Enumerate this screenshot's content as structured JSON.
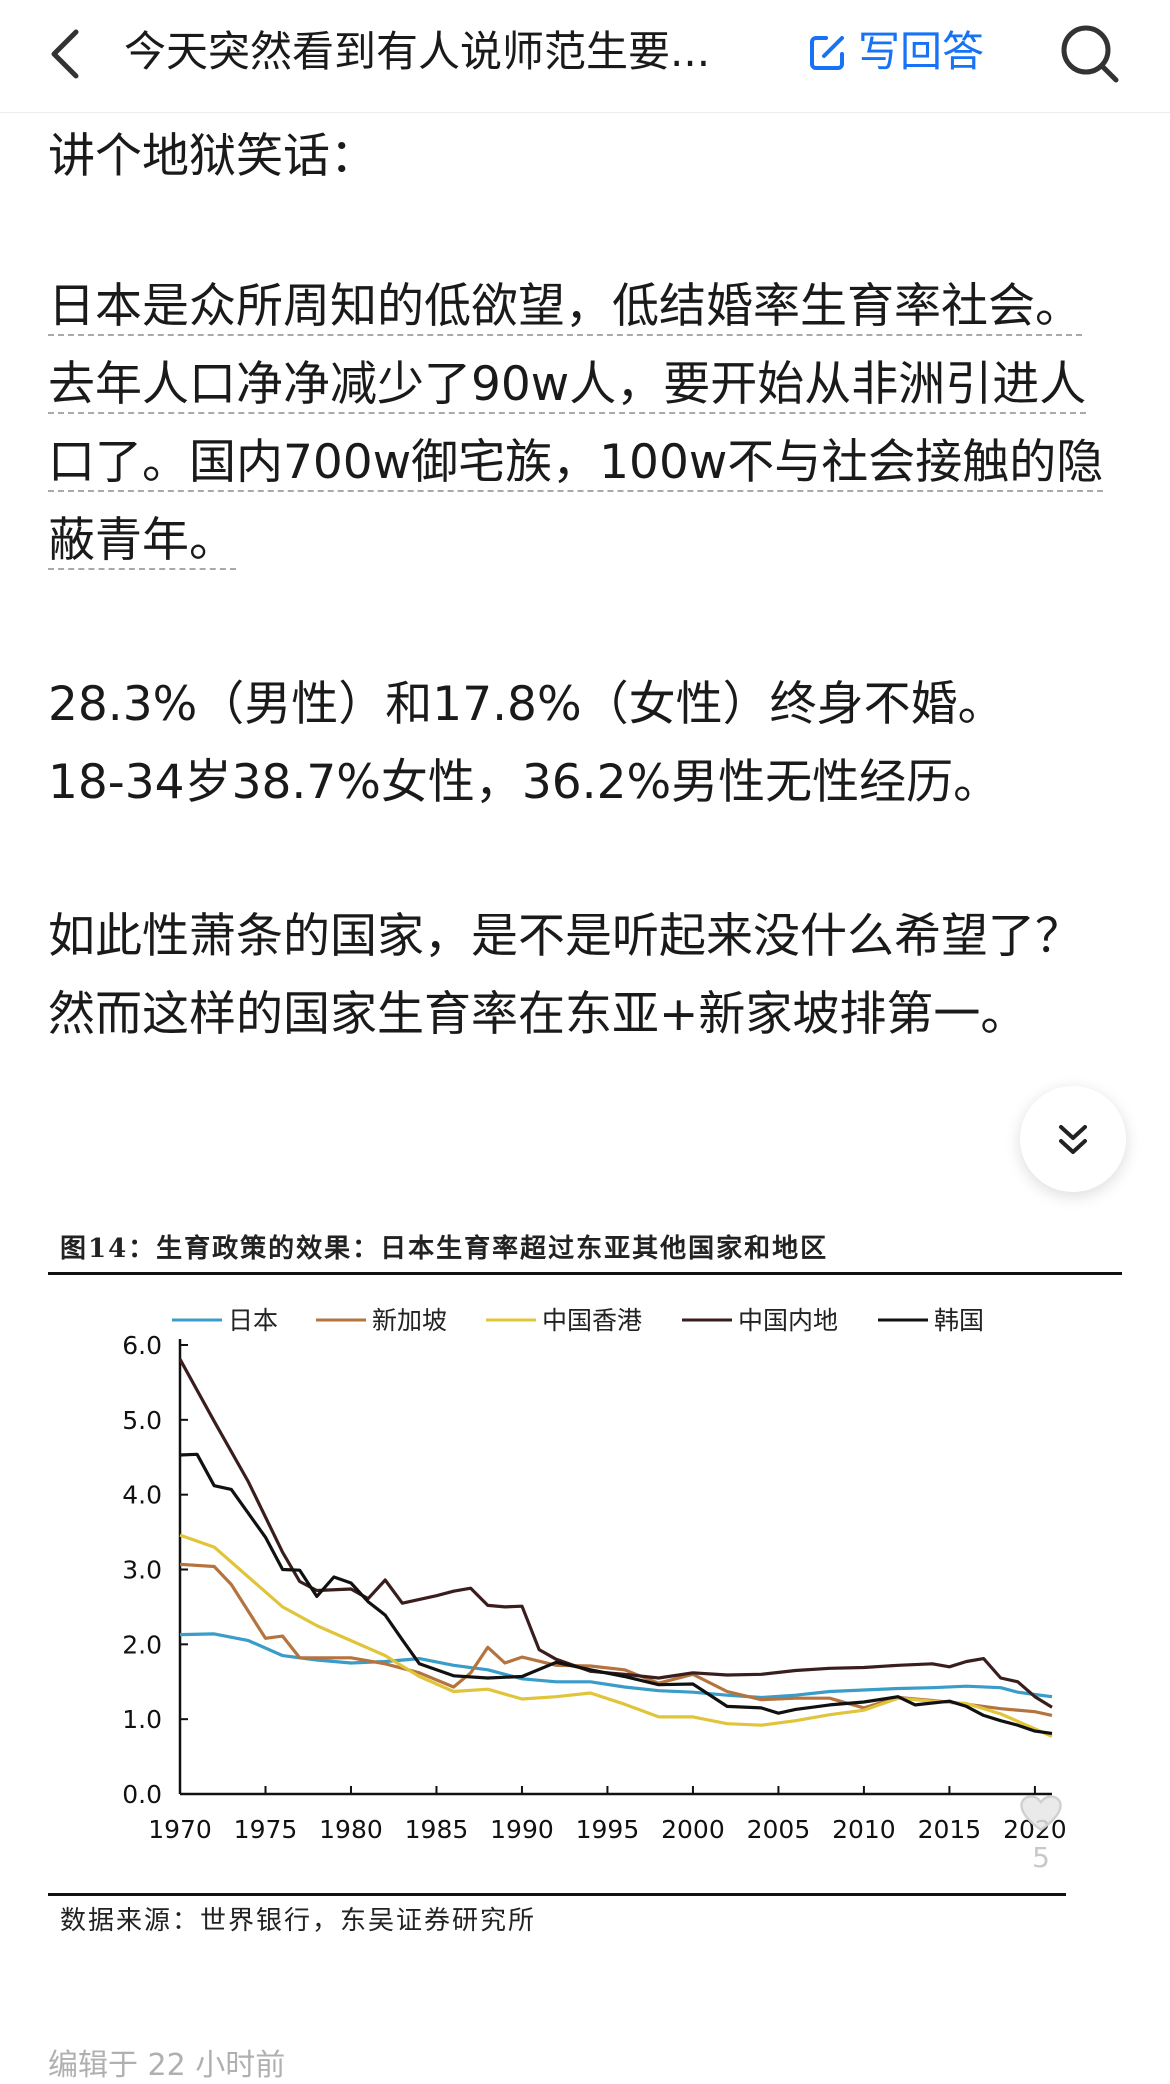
{
  "topbar": {
    "title": "今天突然看到有人说师范生要...",
    "write_answer_label": "写回答",
    "back_icon": "chevron-left-icon",
    "search_icon": "search-icon",
    "accent": "#1772f6"
  },
  "content": {
    "p1": "讲个地狱笑话：",
    "p2": "日本是众所周知的低欲望，低结婚率生育率社会。去年人口净净减少了90w人，要开始从非洲引进人口了。国内700w御宅族，100w不与社会接触的隐蔽青年。",
    "p3_line1": "28.3%（男性）和17.8%（女性）终身不婚。",
    "p3_line2": "18-34岁38.7%女性，36.2%男性无性经历。",
    "p4": "如此性萧条的国家，是不是听起来没什么希望了？然而这样的国家生育率在东亚+新家坡排第一。"
  },
  "chart_image": {
    "caption": "图14：生育政策的效果：日本生育率超过东亚其他国家和地区",
    "source": "数据来源：世界银行，东吴证券研究所"
  },
  "chart_data": {
    "type": "line",
    "title": "",
    "xlabel": "",
    "ylabel": "",
    "xlim": [
      1970,
      2021
    ],
    "ylim": [
      0,
      6
    ],
    "x_ticks": [
      "1970",
      "1975",
      "1980",
      "1985",
      "1990",
      "1995",
      "2000",
      "2005",
      "2010",
      "2015",
      "2020"
    ],
    "y_ticks": [
      "0.0",
      "1.0",
      "2.0",
      "3.0",
      "4.0",
      "5.0",
      "6.0"
    ],
    "legend_position": "top",
    "series": [
      {
        "name": "日本",
        "color": "#3a9cc8",
        "points": [
          [
            1970,
            2.13
          ],
          [
            1972,
            2.14
          ],
          [
            1974,
            2.05
          ],
          [
            1976,
            1.85
          ],
          [
            1978,
            1.79
          ],
          [
            1980,
            1.75
          ],
          [
            1982,
            1.77
          ],
          [
            1984,
            1.81
          ],
          [
            1986,
            1.72
          ],
          [
            1988,
            1.66
          ],
          [
            1990,
            1.54
          ],
          [
            1992,
            1.5
          ],
          [
            1994,
            1.5
          ],
          [
            1996,
            1.43
          ],
          [
            1998,
            1.38
          ],
          [
            2000,
            1.36
          ],
          [
            2002,
            1.32
          ],
          [
            2004,
            1.29
          ],
          [
            2006,
            1.32
          ],
          [
            2008,
            1.37
          ],
          [
            2010,
            1.39
          ],
          [
            2012,
            1.41
          ],
          [
            2014,
            1.42
          ],
          [
            2016,
            1.44
          ],
          [
            2018,
            1.42
          ],
          [
            2019,
            1.36
          ],
          [
            2020,
            1.33
          ],
          [
            2021,
            1.3
          ]
        ]
      },
      {
        "name": "新加坡",
        "color": "#b5733e",
        "points": [
          [
            1970,
            3.07
          ],
          [
            1972,
            3.04
          ],
          [
            1973,
            2.8
          ],
          [
            1975,
            2.08
          ],
          [
            1976,
            2.11
          ],
          [
            1977,
            1.82
          ],
          [
            1980,
            1.82
          ],
          [
            1982,
            1.74
          ],
          [
            1984,
            1.62
          ],
          [
            1986,
            1.43
          ],
          [
            1987,
            1.62
          ],
          [
            1988,
            1.96
          ],
          [
            1989,
            1.75
          ],
          [
            1990,
            1.83
          ],
          [
            1992,
            1.72
          ],
          [
            1994,
            1.71
          ],
          [
            1996,
            1.66
          ],
          [
            1998,
            1.48
          ],
          [
            2000,
            1.6
          ],
          [
            2002,
            1.37
          ],
          [
            2004,
            1.26
          ],
          [
            2006,
            1.28
          ],
          [
            2008,
            1.28
          ],
          [
            2010,
            1.15
          ],
          [
            2012,
            1.29
          ],
          [
            2014,
            1.25
          ],
          [
            2016,
            1.2
          ],
          [
            2018,
            1.14
          ],
          [
            2020,
            1.1
          ],
          [
            2021,
            1.05
          ]
        ]
      },
      {
        "name": "中国香港",
        "color": "#e0c43a",
        "points": [
          [
            1970,
            3.46
          ],
          [
            1972,
            3.3
          ],
          [
            1974,
            2.9
          ],
          [
            1976,
            2.5
          ],
          [
            1978,
            2.25
          ],
          [
            1980,
            2.05
          ],
          [
            1982,
            1.85
          ],
          [
            1984,
            1.57
          ],
          [
            1986,
            1.37
          ],
          [
            1988,
            1.4
          ],
          [
            1990,
            1.27
          ],
          [
            1992,
            1.3
          ],
          [
            1994,
            1.35
          ],
          [
            1996,
            1.2
          ],
          [
            1998,
            1.03
          ],
          [
            2000,
            1.03
          ],
          [
            2002,
            0.94
          ],
          [
            2004,
            0.92
          ],
          [
            2006,
            0.98
          ],
          [
            2008,
            1.06
          ],
          [
            2010,
            1.12
          ],
          [
            2012,
            1.28
          ],
          [
            2014,
            1.24
          ],
          [
            2016,
            1.21
          ],
          [
            2018,
            1.07
          ],
          [
            2020,
            0.87
          ],
          [
            2021,
            0.77
          ]
        ]
      },
      {
        "name": "中国内地",
        "color": "#3a1d1d",
        "points": [
          [
            1970,
            5.81
          ],
          [
            1972,
            4.98
          ],
          [
            1974,
            4.17
          ],
          [
            1976,
            3.23
          ],
          [
            1977,
            2.84
          ],
          [
            1978,
            2.72
          ],
          [
            1980,
            2.74
          ],
          [
            1981,
            2.61
          ],
          [
            1982,
            2.86
          ],
          [
            1983,
            2.55
          ],
          [
            1985,
            2.65
          ],
          [
            1986,
            2.71
          ],
          [
            1987,
            2.75
          ],
          [
            1988,
            2.52
          ],
          [
            1989,
            2.5
          ],
          [
            1990,
            2.51
          ],
          [
            1991,
            1.93
          ],
          [
            1992,
            1.8
          ],
          [
            1994,
            1.64
          ],
          [
            1996,
            1.6
          ],
          [
            1998,
            1.55
          ],
          [
            2000,
            1.62
          ],
          [
            2002,
            1.59
          ],
          [
            2004,
            1.6
          ],
          [
            2006,
            1.65
          ],
          [
            2008,
            1.68
          ],
          [
            2010,
            1.69
          ],
          [
            2012,
            1.72
          ],
          [
            2014,
            1.74
          ],
          [
            2015,
            1.7
          ],
          [
            2016,
            1.77
          ],
          [
            2017,
            1.81
          ],
          [
            2018,
            1.55
          ],
          [
            2019,
            1.5
          ],
          [
            2020,
            1.3
          ],
          [
            2021,
            1.16
          ]
        ]
      },
      {
        "name": "韩国",
        "color": "#111111",
        "points": [
          [
            1970,
            4.53
          ],
          [
            1971,
            4.54
          ],
          [
            1972,
            4.12
          ],
          [
            1973,
            4.07
          ],
          [
            1975,
            3.43
          ],
          [
            1976,
            3.0
          ],
          [
            1977,
            2.99
          ],
          [
            1978,
            2.64
          ],
          [
            1979,
            2.9
          ],
          [
            1980,
            2.82
          ],
          [
            1981,
            2.57
          ],
          [
            1982,
            2.39
          ],
          [
            1983,
            2.06
          ],
          [
            1984,
            1.74
          ],
          [
            1986,
            1.58
          ],
          [
            1988,
            1.55
          ],
          [
            1990,
            1.57
          ],
          [
            1992,
            1.76
          ],
          [
            1994,
            1.66
          ],
          [
            1996,
            1.57
          ],
          [
            1998,
            1.46
          ],
          [
            2000,
            1.47
          ],
          [
            2002,
            1.17
          ],
          [
            2004,
            1.15
          ],
          [
            2005,
            1.08
          ],
          [
            2006,
            1.13
          ],
          [
            2008,
            1.19
          ],
          [
            2010,
            1.23
          ],
          [
            2012,
            1.3
          ],
          [
            2013,
            1.19
          ],
          [
            2015,
            1.24
          ],
          [
            2016,
            1.17
          ],
          [
            2017,
            1.05
          ],
          [
            2018,
            0.98
          ],
          [
            2019,
            0.92
          ],
          [
            2020,
            0.84
          ],
          [
            2021,
            0.81
          ]
        ]
      }
    ]
  },
  "like": {
    "count": "5",
    "icon": "heart-icon"
  },
  "footer": {
    "partial_text": "编辑于 22 小时前"
  }
}
